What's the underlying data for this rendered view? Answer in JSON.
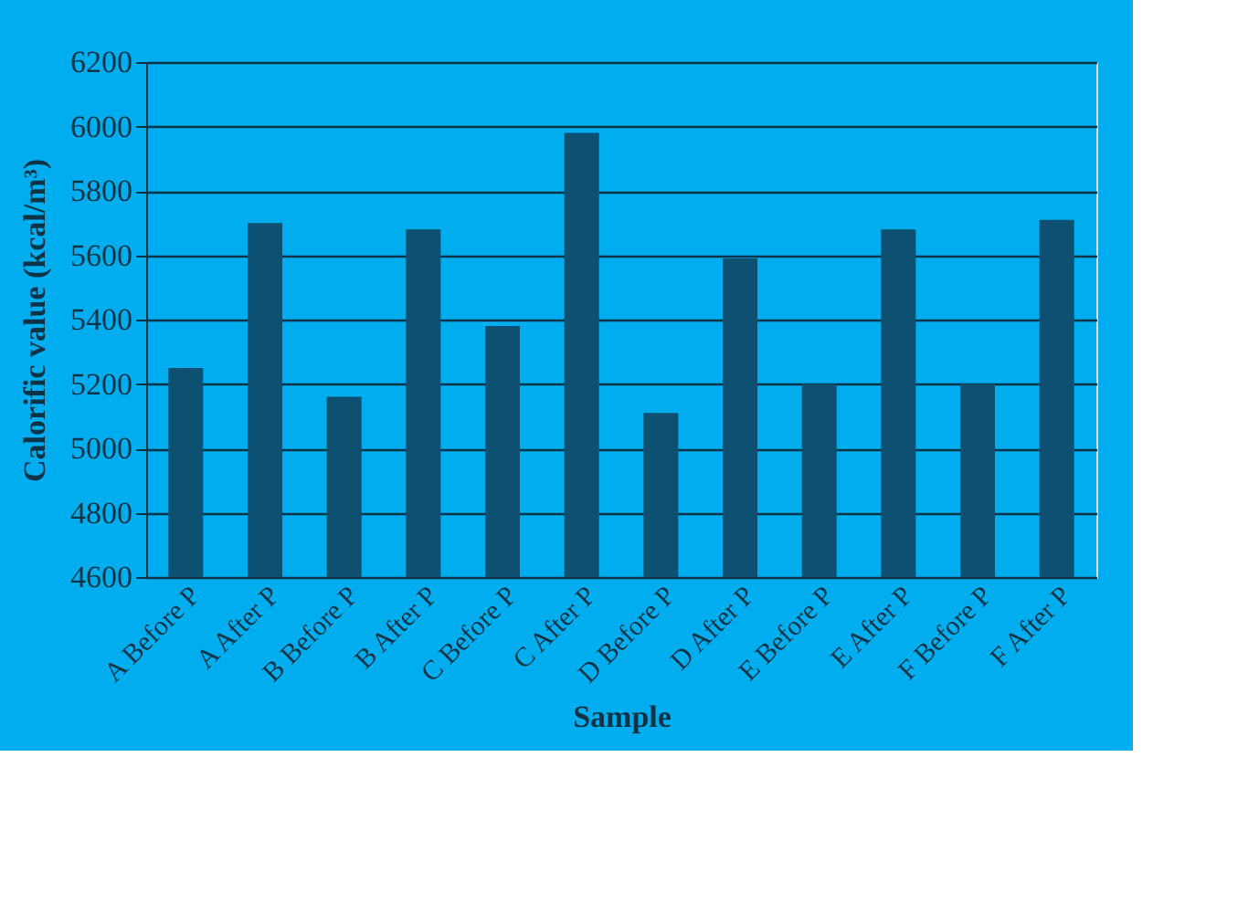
{
  "chart_data": {
    "type": "bar",
    "xlabel": "Sample",
    "ylabel": "Calorific  value  (kcal/m³)",
    "categories": [
      "A Before P",
      "A After P",
      "B Before P",
      "B After P",
      "C Before P",
      "C After P",
      "D Before P",
      "D After P",
      "E Before P",
      "E After P",
      "F Before P",
      "F After P"
    ],
    "values": [
      5250,
      5700,
      5160,
      5680,
      5380,
      5980,
      5110,
      5590,
      5200,
      5680,
      5200,
      5710
    ],
    "color": "#0e5072",
    "ylim": [
      4600,
      6200
    ],
    "yticks": [
      4600,
      4800,
      5000,
      5200,
      5400,
      5600,
      5800,
      6000,
      6200
    ],
    "grid": "y"
  }
}
